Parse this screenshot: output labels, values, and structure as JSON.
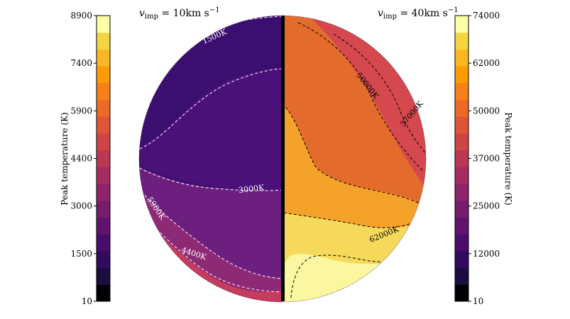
{
  "chart_data": [
    {
      "type": "heatmap",
      "panel": "left",
      "title_v": "v",
      "title_sub": "imp",
      "title_rest": " = 10km s",
      "title_exp": "−1",
      "colorbar": {
        "label": "Peak temperature (K)",
        "ticks": [
          "8900",
          "7400",
          "5900",
          "4400",
          "3000",
          "1500",
          "10"
        ],
        "range": [
          10,
          8900
        ]
      },
      "contours": [
        {
          "label": "1500K",
          "value": 1500
        },
        {
          "label": "3000K",
          "value": 3000
        },
        {
          "label": "4400K",
          "value": 4400
        },
        {
          "label": "5900K",
          "value": 5900
        }
      ]
    },
    {
      "type": "heatmap",
      "panel": "right",
      "title_v": "v",
      "title_sub": "imp",
      "title_rest": " = 40km s",
      "title_exp": "−1",
      "colorbar": {
        "label": "Peak temperature (K)",
        "ticks": [
          "74000",
          "62000",
          "50000",
          "37000",
          "25000",
          "12000",
          "10"
        ],
        "range": [
          10,
          74000
        ]
      },
      "contours": [
        {
          "label": "50000K",
          "value": 50000
        },
        {
          "label": "37000K",
          "value": 37000
        },
        {
          "label": "62000K",
          "value": 62000
        }
      ]
    }
  ],
  "colormap": [
    "#000004",
    "#1b0c41",
    "#320a5e",
    "#4a0c6b",
    "#61136e",
    "#781c6d",
    "#8e2469",
    "#a52c60",
    "#bb3754",
    "#cf4446",
    "#e05536",
    "#ed6925",
    "#f7801a",
    "#fb9b06",
    "#f9b724",
    "#f3d544",
    "#fcffa4"
  ]
}
